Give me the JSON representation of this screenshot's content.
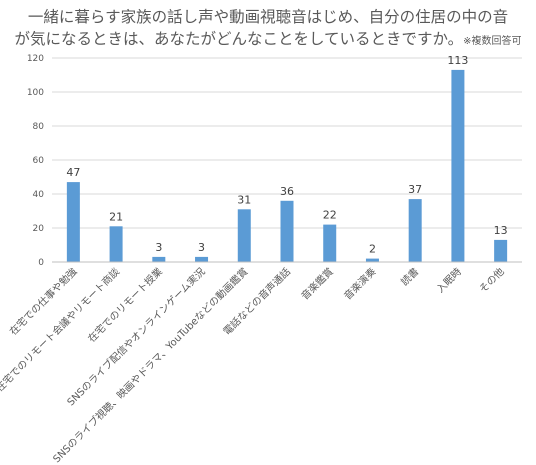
{
  "title": {
    "line1": "一緒に暮らす家族の話し声や動画視聴音はじめ、自分の住居の中の音",
    "line2": "が気になるときは、あなたがどんなことをしているときですか。",
    "note": "※複数回答可"
  },
  "chart_data": {
    "type": "bar",
    "categories": [
      "在宅での仕事や勉強",
      "在宅でのリモート会議やリモート商談",
      "在宅でのリモート授業",
      "SNSのライブ配信やオンラインゲーム実況",
      "SNSのライブ視聴、映画やドラマ、YouTubeなどの動画鑑賞",
      "電話などの音声通話",
      "音楽鑑賞",
      "音楽演奏",
      "読書",
      "入眠時",
      "その他"
    ],
    "values": [
      47,
      21,
      3,
      3,
      31,
      36,
      22,
      2,
      37,
      113,
      13
    ],
    "ylim": [
      0,
      120
    ],
    "yticks": [
      0,
      20,
      40,
      60,
      80,
      100,
      120
    ],
    "grid": true,
    "bar_color": "#5b9bd5"
  }
}
